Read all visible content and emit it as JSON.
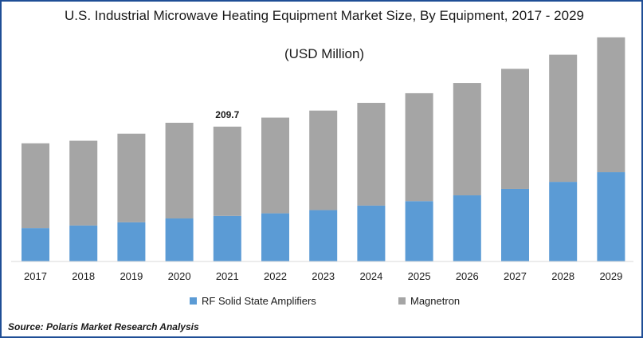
{
  "chart_data": {
    "type": "bar",
    "stacked": true,
    "title": "U.S. Industrial Microwave Heating Equipment Market Size, By Equipment, 2017 - 2029",
    "subtitle": "(USD Million)",
    "categories": [
      "2017",
      "2018",
      "2019",
      "2020",
      "2021",
      "2022",
      "2023",
      "2024",
      "2025",
      "2026",
      "2027",
      "2028",
      "2029"
    ],
    "series": [
      {
        "name": "RF Solid State Amplifiers",
        "color": "#5b9bd5",
        "values": [
          52,
          56,
          61,
          67,
          71,
          75,
          80,
          87,
          94,
          103,
          113,
          124,
          139
        ]
      },
      {
        "name": "Magnetron",
        "color": "#a5a5a5",
        "values": [
          132,
          132,
          138,
          149,
          139,
          149,
          155,
          160,
          168,
          175,
          187,
          198,
          210
        ]
      }
    ],
    "annotations": [
      {
        "category": "2021",
        "label": "209.7"
      }
    ],
    "ylim": [
      0,
      360
    ],
    "grid": false,
    "legend": "bottom"
  },
  "source": "Source: Polaris  Market Research Analysis"
}
